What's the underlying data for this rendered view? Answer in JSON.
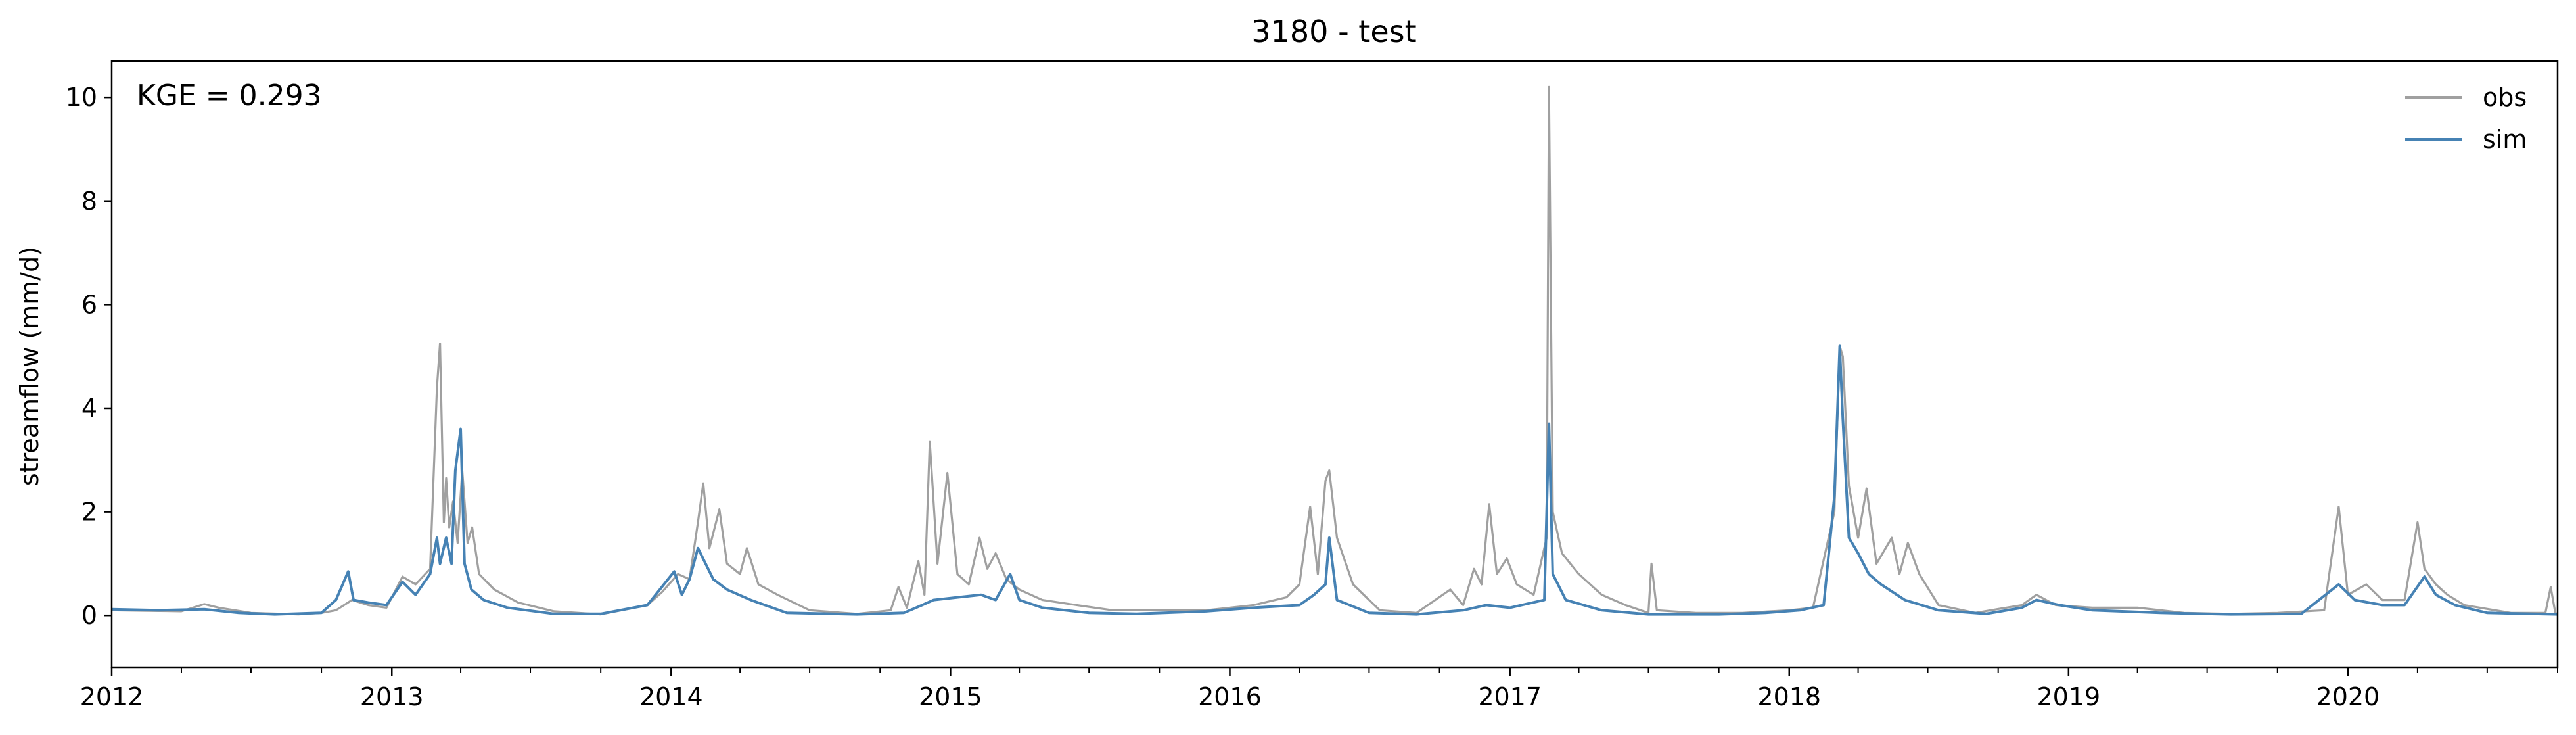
{
  "chart_data": {
    "type": "line",
    "title": "3180 - test",
    "ylabel": "streamflow (mm/d)",
    "xlabel": "",
    "annotation": "KGE = 0.293",
    "xlim": [
      "2012-01-01",
      "2020-10-01"
    ],
    "ylim": [
      -1,
      10.7
    ],
    "yticks": [
      0,
      2,
      4,
      6,
      8,
      10
    ],
    "xticks": [
      "2012",
      "2013",
      "2014",
      "2015",
      "2016",
      "2017",
      "2018",
      "2019",
      "2020"
    ],
    "legend_position": "top-right",
    "grid": false,
    "series": [
      {
        "name": "obs",
        "color": "#a0a0a0",
        "points": [
          [
            "2012-01-01",
            0.1
          ],
          [
            "2012-02-15",
            0.09
          ],
          [
            "2012-04-01",
            0.08
          ],
          [
            "2012-05-01",
            0.22
          ],
          [
            "2012-05-20",
            0.15
          ],
          [
            "2012-07-01",
            0.05
          ],
          [
            "2012-09-01",
            0.02
          ],
          [
            "2012-10-01",
            0.05
          ],
          [
            "2012-10-20",
            0.1
          ],
          [
            "2012-11-10",
            0.3
          ],
          [
            "2012-12-01",
            0.2
          ],
          [
            "2012-12-25",
            0.15
          ],
          [
            "2013-01-15",
            0.75
          ],
          [
            "2013-02-01",
            0.6
          ],
          [
            "2013-02-20",
            0.9
          ],
          [
            "2013-03-01",
            4.4
          ],
          [
            "2013-03-05",
            5.25
          ],
          [
            "2013-03-10",
            1.8
          ],
          [
            "2013-03-13",
            2.65
          ],
          [
            "2013-03-17",
            1.7
          ],
          [
            "2013-03-22",
            2.2
          ],
          [
            "2013-03-28",
            1.4
          ],
          [
            "2013-04-03",
            2.8
          ],
          [
            "2013-04-10",
            1.4
          ],
          [
            "2013-04-16",
            1.7
          ],
          [
            "2013-04-25",
            0.8
          ],
          [
            "2013-05-15",
            0.5
          ],
          [
            "2013-06-15",
            0.25
          ],
          [
            "2013-08-01",
            0.08
          ],
          [
            "2013-10-01",
            0.02
          ],
          [
            "2013-12-01",
            0.2
          ],
          [
            "2013-12-20",
            0.45
          ],
          [
            "2014-01-10",
            0.8
          ],
          [
            "2014-01-25",
            0.7
          ],
          [
            "2014-02-05",
            1.8
          ],
          [
            "2014-02-12",
            2.55
          ],
          [
            "2014-02-20",
            1.3
          ],
          [
            "2014-03-05",
            2.05
          ],
          [
            "2014-03-15",
            1.0
          ],
          [
            "2014-04-01",
            0.8
          ],
          [
            "2014-04-10",
            1.3
          ],
          [
            "2014-04-25",
            0.6
          ],
          [
            "2014-05-20",
            0.4
          ],
          [
            "2014-07-01",
            0.1
          ],
          [
            "2014-09-01",
            0.03
          ],
          [
            "2014-10-15",
            0.1
          ],
          [
            "2014-10-25",
            0.55
          ],
          [
            "2014-11-05",
            0.15
          ],
          [
            "2014-11-20",
            1.05
          ],
          [
            "2014-11-28",
            0.4
          ],
          [
            "2014-12-05",
            3.35
          ],
          [
            "2014-12-15",
            1.0
          ],
          [
            "2014-12-28",
            2.75
          ],
          [
            "2015-01-10",
            0.8
          ],
          [
            "2015-01-25",
            0.6
          ],
          [
            "2015-02-08",
            1.5
          ],
          [
            "2015-02-18",
            0.9
          ],
          [
            "2015-03-01",
            1.2
          ],
          [
            "2015-03-15",
            0.7
          ],
          [
            "2015-04-01",
            0.5
          ],
          [
            "2015-05-01",
            0.3
          ],
          [
            "2015-06-15",
            0.2
          ],
          [
            "2015-08-01",
            0.1
          ],
          [
            "2015-10-01",
            0.1
          ],
          [
            "2015-12-01",
            0.1
          ],
          [
            "2016-02-01",
            0.2
          ],
          [
            "2016-03-15",
            0.35
          ],
          [
            "2016-04-01",
            0.6
          ],
          [
            "2016-04-15",
            2.1
          ],
          [
            "2016-04-25",
            0.8
          ],
          [
            "2016-05-05",
            2.6
          ],
          [
            "2016-05-10",
            2.8
          ],
          [
            "2016-05-20",
            1.5
          ],
          [
            "2016-06-10",
            0.6
          ],
          [
            "2016-07-15",
            0.1
          ],
          [
            "2016-09-01",
            0.05
          ],
          [
            "2016-10-15",
            0.5
          ],
          [
            "2016-11-01",
            0.2
          ],
          [
            "2016-11-15",
            0.9
          ],
          [
            "2016-11-25",
            0.6
          ],
          [
            "2016-12-05",
            2.15
          ],
          [
            "2016-12-15",
            0.8
          ],
          [
            "2016-12-28",
            1.1
          ],
          [
            "2017-01-10",
            0.6
          ],
          [
            "2017-02-01",
            0.4
          ],
          [
            "2017-02-18",
            1.5
          ],
          [
            "2017-02-21",
            10.2
          ],
          [
            "2017-02-26",
            2.0
          ],
          [
            "2017-03-10",
            1.2
          ],
          [
            "2017-04-01",
            0.8
          ],
          [
            "2017-05-01",
            0.4
          ],
          [
            "2017-06-01",
            0.2
          ],
          [
            "2017-07-01",
            0.05
          ],
          [
            "2017-07-05",
            1.0
          ],
          [
            "2017-07-12",
            0.1
          ],
          [
            "2017-09-01",
            0.05
          ],
          [
            "2017-11-01",
            0.05
          ],
          [
            "2018-01-01",
            0.1
          ],
          [
            "2018-02-01",
            0.15
          ],
          [
            "2018-03-01",
            2.0
          ],
          [
            "2018-03-08",
            5.2
          ],
          [
            "2018-03-12",
            5.0
          ],
          [
            "2018-03-20",
            2.5
          ],
          [
            "2018-04-01",
            1.5
          ],
          [
            "2018-04-12",
            2.45
          ],
          [
            "2018-04-25",
            1.0
          ],
          [
            "2018-05-15",
            1.5
          ],
          [
            "2018-05-25",
            0.8
          ],
          [
            "2018-06-05",
            1.4
          ],
          [
            "2018-06-20",
            0.8
          ],
          [
            "2018-07-15",
            0.2
          ],
          [
            "2018-09-01",
            0.05
          ],
          [
            "2018-11-01",
            0.2
          ],
          [
            "2018-11-20",
            0.4
          ],
          [
            "2018-12-15",
            0.2
          ],
          [
            "2019-02-01",
            0.15
          ],
          [
            "2019-04-01",
            0.15
          ],
          [
            "2019-06-01",
            0.05
          ],
          [
            "2019-08-01",
            0.03
          ],
          [
            "2019-10-01",
            0.05
          ],
          [
            "2019-12-01",
            0.1
          ],
          [
            "2019-12-20",
            2.1
          ],
          [
            "2020-01-01",
            0.4
          ],
          [
            "2020-01-25",
            0.6
          ],
          [
            "2020-02-15",
            0.3
          ],
          [
            "2020-03-15",
            0.3
          ],
          [
            "2020-04-01",
            1.8
          ],
          [
            "2020-04-10",
            0.9
          ],
          [
            "2020-04-25",
            0.6
          ],
          [
            "2020-05-10",
            0.4
          ],
          [
            "2020-06-01",
            0.2
          ],
          [
            "2020-08-01",
            0.05
          ],
          [
            "2020-09-15",
            0.05
          ],
          [
            "2020-09-22",
            0.55
          ],
          [
            "2020-09-28",
            0.05
          ],
          [
            "2020-10-01",
            0.02
          ]
        ]
      },
      {
        "name": "sim",
        "color": "#4682b4",
        "points": [
          [
            "2012-01-01",
            0.12
          ],
          [
            "2012-03-01",
            0.1
          ],
          [
            "2012-05-01",
            0.12
          ],
          [
            "2012-06-15",
            0.05
          ],
          [
            "2012-08-01",
            0.02
          ],
          [
            "2012-10-01",
            0.05
          ],
          [
            "2012-10-20",
            0.3
          ],
          [
            "2012-11-05",
            0.85
          ],
          [
            "2012-11-12",
            0.3
          ],
          [
            "2012-12-01",
            0.25
          ],
          [
            "2012-12-25",
            0.2
          ],
          [
            "2013-01-15",
            0.65
          ],
          [
            "2013-02-01",
            0.4
          ],
          [
            "2013-02-20",
            0.8
          ],
          [
            "2013-03-01",
            1.5
          ],
          [
            "2013-03-05",
            1.0
          ],
          [
            "2013-03-13",
            1.5
          ],
          [
            "2013-03-20",
            1.0
          ],
          [
            "2013-03-25",
            2.8
          ],
          [
            "2013-04-01",
            3.6
          ],
          [
            "2013-04-06",
            1.0
          ],
          [
            "2013-04-15",
            0.5
          ],
          [
            "2013-05-01",
            0.3
          ],
          [
            "2013-06-01",
            0.15
          ],
          [
            "2013-08-01",
            0.03
          ],
          [
            "2013-10-01",
            0.03
          ],
          [
            "2013-12-01",
            0.2
          ],
          [
            "2014-01-05",
            0.85
          ],
          [
            "2014-01-15",
            0.4
          ],
          [
            "2014-01-25",
            0.7
          ],
          [
            "2014-02-05",
            1.3
          ],
          [
            "2014-02-15",
            1.0
          ],
          [
            "2014-02-25",
            0.7
          ],
          [
            "2014-03-15",
            0.5
          ],
          [
            "2014-04-15",
            0.3
          ],
          [
            "2014-06-01",
            0.05
          ],
          [
            "2014-09-01",
            0.02
          ],
          [
            "2014-11-01",
            0.05
          ],
          [
            "2014-11-25",
            0.2
          ],
          [
            "2014-12-10",
            0.3
          ],
          [
            "2015-01-10",
            0.35
          ],
          [
            "2015-02-10",
            0.4
          ],
          [
            "2015-03-01",
            0.3
          ],
          [
            "2015-03-20",
            0.8
          ],
          [
            "2015-04-01",
            0.3
          ],
          [
            "2015-05-01",
            0.15
          ],
          [
            "2015-07-01",
            0.05
          ],
          [
            "2015-09-01",
            0.03
          ],
          [
            "2015-12-01",
            0.08
          ],
          [
            "2016-02-01",
            0.15
          ],
          [
            "2016-04-01",
            0.2
          ],
          [
            "2016-04-20",
            0.4
          ],
          [
            "2016-05-05",
            0.6
          ],
          [
            "2016-05-10",
            1.5
          ],
          [
            "2016-05-20",
            0.3
          ],
          [
            "2016-07-01",
            0.05
          ],
          [
            "2016-09-01",
            0.02
          ],
          [
            "2016-11-01",
            0.1
          ],
          [
            "2016-12-01",
            0.2
          ],
          [
            "2017-01-01",
            0.15
          ],
          [
            "2017-02-15",
            0.3
          ],
          [
            "2017-02-21",
            3.7
          ],
          [
            "2017-02-26",
            0.8
          ],
          [
            "2017-03-15",
            0.3
          ],
          [
            "2017-05-01",
            0.1
          ],
          [
            "2017-07-01",
            0.02
          ],
          [
            "2017-10-01",
            0.02
          ],
          [
            "2017-12-01",
            0.05
          ],
          [
            "2018-01-15",
            0.1
          ],
          [
            "2018-02-15",
            0.2
          ],
          [
            "2018-03-01",
            2.3
          ],
          [
            "2018-03-08",
            5.2
          ],
          [
            "2018-03-12",
            3.8
          ],
          [
            "2018-03-20",
            1.5
          ],
          [
            "2018-04-01",
            1.2
          ],
          [
            "2018-04-15",
            0.8
          ],
          [
            "2018-05-01",
            0.6
          ],
          [
            "2018-06-01",
            0.3
          ],
          [
            "2018-07-15",
            0.1
          ],
          [
            "2018-09-15",
            0.03
          ],
          [
            "2018-11-01",
            0.15
          ],
          [
            "2018-11-20",
            0.3
          ],
          [
            "2018-12-20",
            0.2
          ],
          [
            "2019-02-01",
            0.1
          ],
          [
            "2019-05-01",
            0.05
          ],
          [
            "2019-08-01",
            0.02
          ],
          [
            "2019-11-01",
            0.03
          ],
          [
            "2019-12-20",
            0.6
          ],
          [
            "2020-01-10",
            0.3
          ],
          [
            "2020-02-15",
            0.2
          ],
          [
            "2020-03-15",
            0.2
          ],
          [
            "2020-04-10",
            0.75
          ],
          [
            "2020-04-25",
            0.4
          ],
          [
            "2020-05-20",
            0.2
          ],
          [
            "2020-07-01",
            0.05
          ],
          [
            "2020-10-01",
            0.02
          ]
        ]
      }
    ]
  }
}
